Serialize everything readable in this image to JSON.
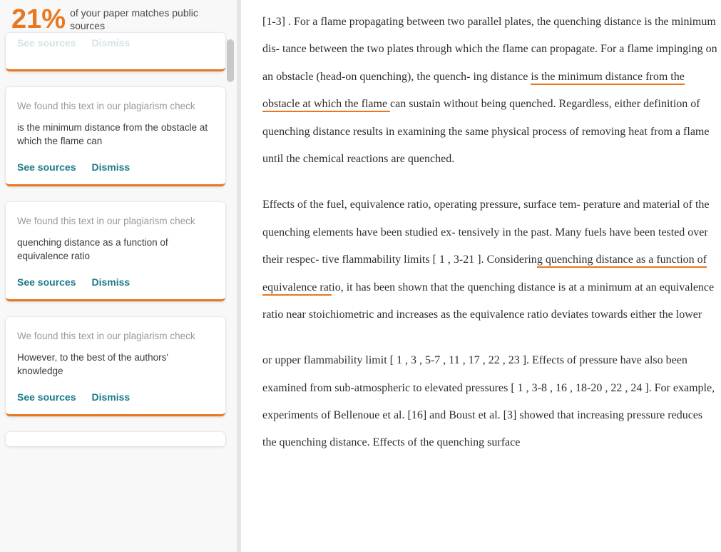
{
  "header": {
    "percent": "21%",
    "subtitle": "of your paper matches public sources"
  },
  "colors": {
    "accent": "#e87722",
    "link": "#1a7a8a",
    "muted": "#9a9a9a"
  },
  "actions": {
    "see_sources": "See sources",
    "dismiss": "Dismiss"
  },
  "faded_card": {
    "see_sources": "See sources",
    "dismiss": "Dismiss"
  },
  "cards": [
    {
      "header": "We found this text in our plagiarism check",
      "body": "is the minimum distance from the obstacle at which the flame can"
    },
    {
      "header": "We found this text in our plagiarism check",
      "body": "quenching distance as a function of equivalence ratio"
    },
    {
      "header": "We found this text in our plagiarism check",
      "body": "However, to the best of the authors' knowledge"
    }
  ],
  "document": {
    "p1_a": "[1-3] . For a flame propagating between two parallel plates, the quenching distance is the minimum dis- tance between the two plates through which the flame can propagate. For a flame impinging on an obstacle (head-on quenching), the quench- ing distance ",
    "p1_hl": "is the minimum distance from the obstacle at which the flame ",
    "p1_b": "can sustain without being quenched. Regardless, either definition of quenching distance results in examining the same physical process of removing heat from a flame until the chemical reactions are quenched.",
    "p2_a": "Effects of the fuel, equivalence ratio, operating pressure, surface tem- perature and material of the quenching elements have been studied ex- tensively in the past. Many fuels have been tested over their respec- tive flammability limits [ 1 , 3-21 ]. Considerin",
    "p2_hl": "g quenching distance as a function of equivalence rat",
    "p2_b": "io, it has been shown that the quenching distance is at a minimum at an equivalence ratio near stoichiometric and increases as the equivalence ratio deviates towards either the lower",
    "p3": "or upper flammability limit [ 1 , 3 , 5-7 , 11 , 17 , 22 , 23 ]. Effects of pressure have also been examined from sub-atmospheric to elevated pressures [ 1 , 3-8 , 16 , 18-20 , 22 , 24 ]. For example, experiments of Bellenoue et al. [16] and Boust et al. [3] showed that increasing pressure reduces the quenching distance. Effects of the quenching surface"
  }
}
